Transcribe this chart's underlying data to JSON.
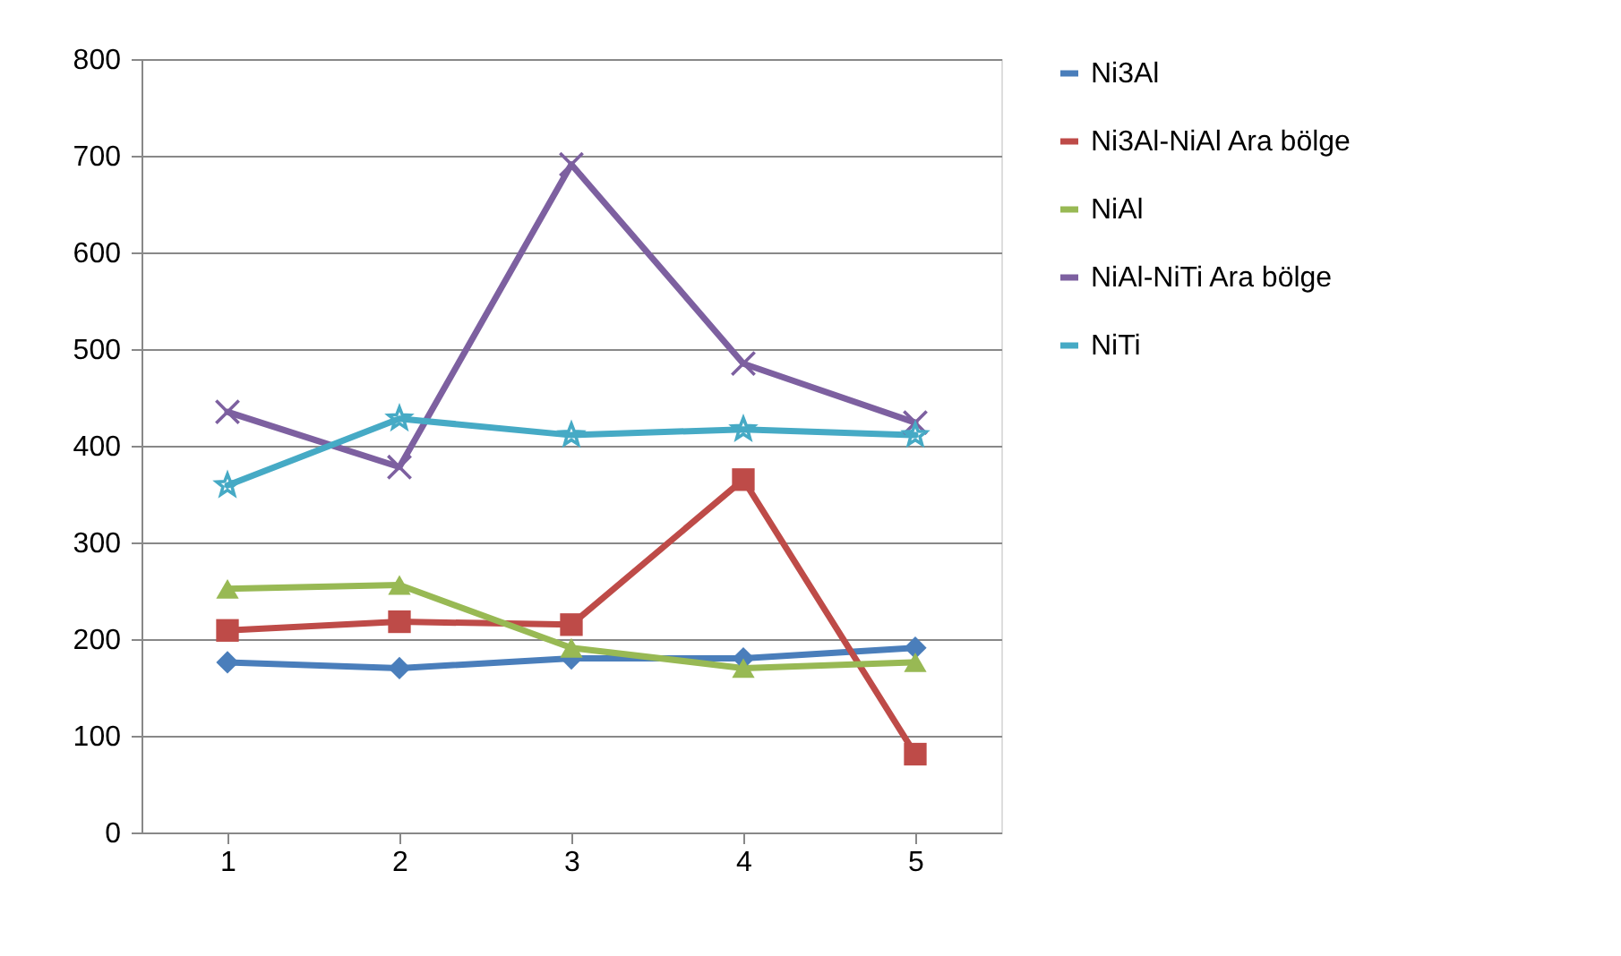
{
  "chart_data": {
    "type": "line",
    "categories": [
      "1",
      "2",
      "3",
      "4",
      "5"
    ],
    "series": [
      {
        "name": "Ni3Al",
        "color": "#4a7ebb",
        "marker": "diamond",
        "values": [
          176,
          170,
          180,
          180,
          191
        ]
      },
      {
        "name": "Ni3Al-NiAl Ara bölge",
        "color": "#be4b48",
        "marker": "square",
        "values": [
          209,
          218,
          215,
          365,
          81
        ]
      },
      {
        "name": "NiAl",
        "color": "#98b954",
        "marker": "triangle",
        "values": [
          252,
          256,
          191,
          170,
          176
        ]
      },
      {
        "name": "NiAl-NiTi Ara bölge",
        "color": "#7d60a0",
        "marker": "cross",
        "values": [
          435,
          378,
          691,
          485,
          424
        ]
      },
      {
        "name": "NiTi",
        "color": "#46aac5",
        "marker": "star",
        "values": [
          359,
          428,
          411,
          417,
          411
        ]
      }
    ],
    "ylim": [
      0,
      800
    ],
    "yticks": [
      0,
      100,
      200,
      300,
      400,
      500,
      600,
      700,
      800
    ],
    "grid": "y",
    "legend": "right",
    "line_style": "solid"
  }
}
